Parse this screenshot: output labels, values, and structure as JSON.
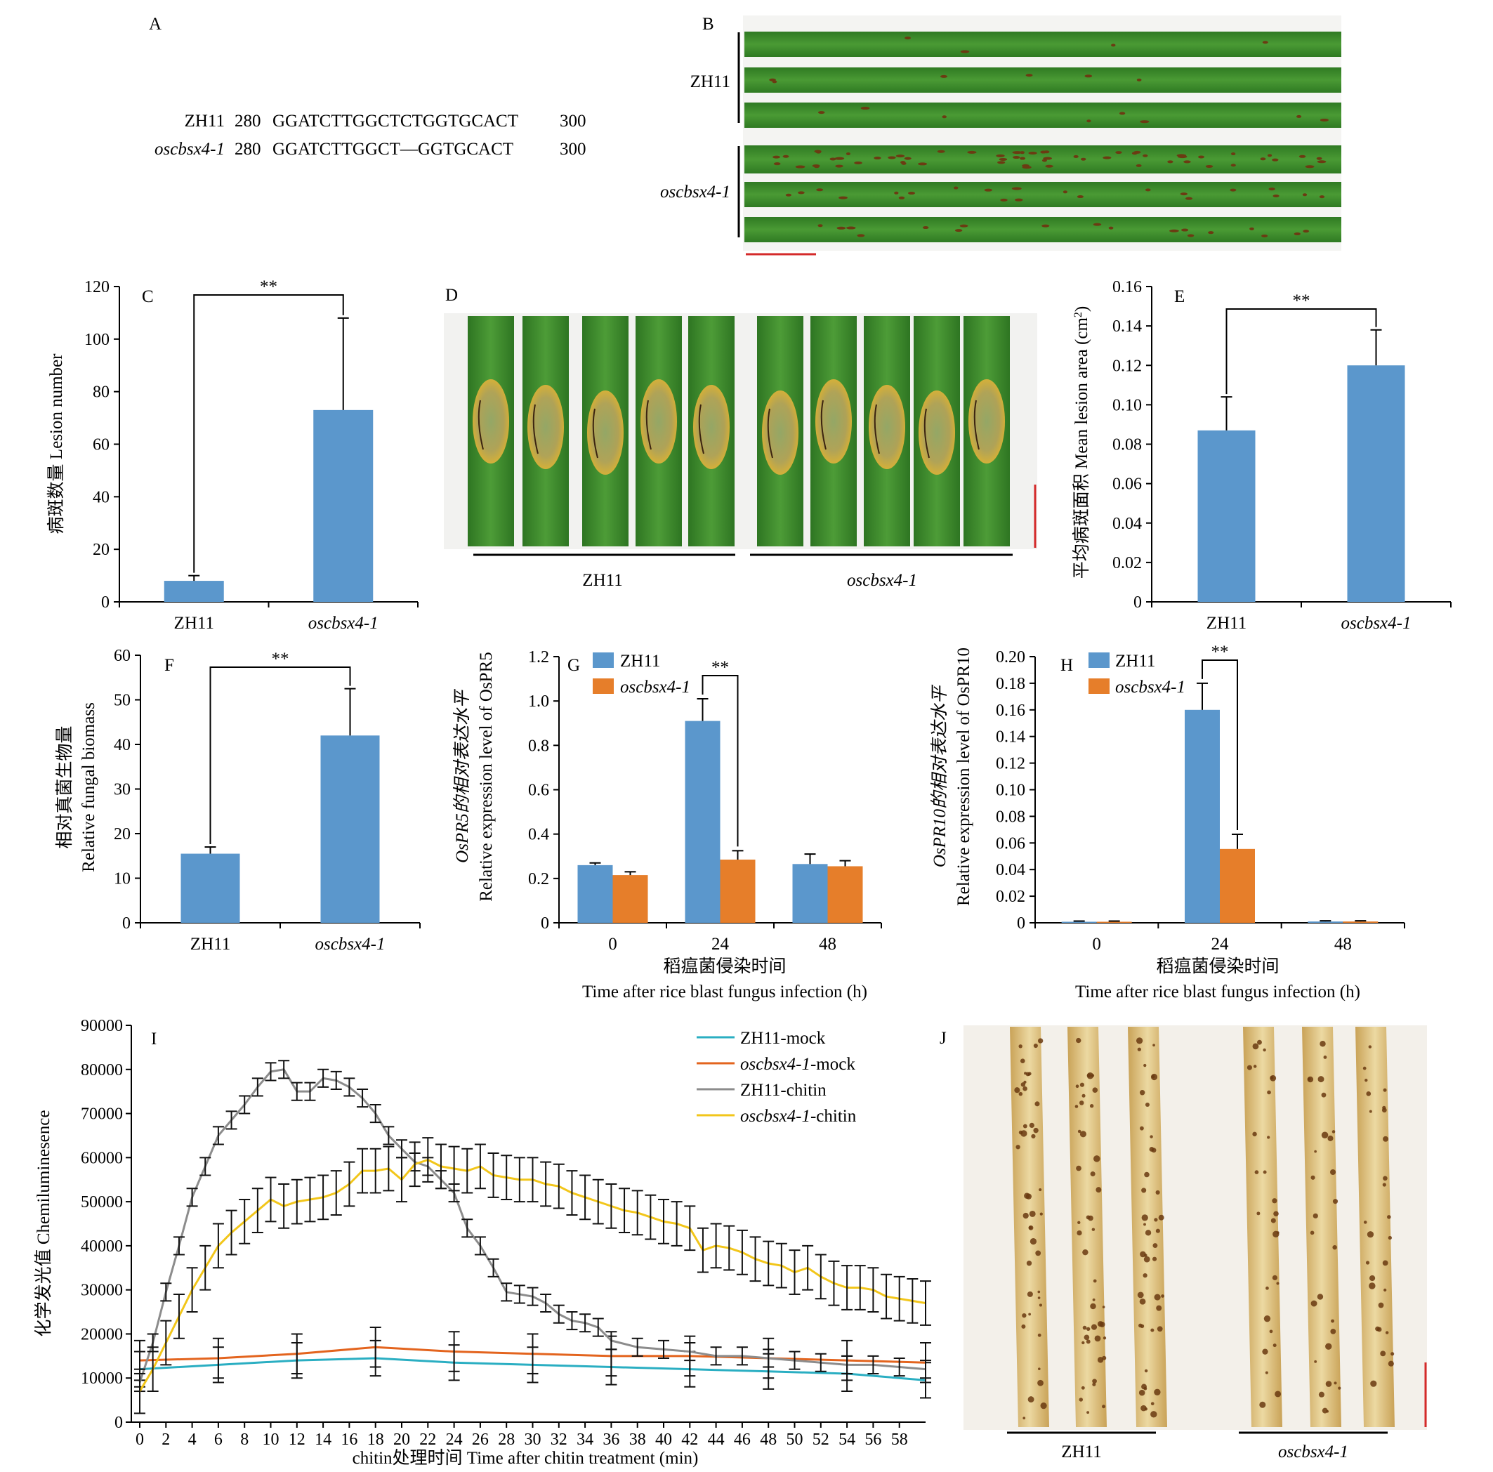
{
  "panels": {
    "A": {
      "letter": "A",
      "rows": [
        {
          "name": "ZH11",
          "start": "280",
          "seq": "GGATCTTGGCTCTGGTGCACT",
          "end": "300"
        },
        {
          "name": "oscbsx4-1",
          "start": "280",
          "seq": "GGATCTTGGCT—GGTGCACT",
          "end": "300"
        }
      ]
    },
    "B": {
      "letter": "B",
      "group1": "ZH11",
      "group2": "oscbsx4-1"
    },
    "D": {
      "letter": "D",
      "group1": "ZH11",
      "group2": "oscbsx4-1"
    },
    "J": {
      "letter": "J",
      "group1": "ZH11",
      "group2": "oscbsx4-1"
    }
  },
  "colors": {
    "blue": "#5b97cc",
    "orange": "#e67e2a",
    "cyan": "#2aaec2",
    "mockOrange": "#e3641e",
    "gray": "#8c8c8c",
    "yellow": "#f2c61a",
    "leafGreen": "#3f8a2e",
    "scaleRed": "#d42a2a"
  },
  "chart_data": [
    {
      "id": "C",
      "type": "bar",
      "letter": "C",
      "categories": [
        "ZH11",
        "oscbsx4-1"
      ],
      "values": [
        8,
        73
      ],
      "errors": [
        2,
        35
      ],
      "ylim": [
        0,
        120
      ],
      "yticks": [
        0,
        20,
        40,
        60,
        80,
        100,
        120
      ],
      "ylabel": "病斑数量 Lesion number",
      "significance": "**"
    },
    {
      "id": "E",
      "type": "bar",
      "letter": "E",
      "categories": [
        "ZH11",
        "oscbsx4-1"
      ],
      "values": [
        0.087,
        0.12
      ],
      "errors": [
        0.017,
        0.018
      ],
      "ylim": [
        0,
        0.16
      ],
      "yticks": [
        "0",
        "0.02",
        "0.04",
        "0.06",
        "0.08",
        "0.10",
        "0.12",
        "0.14",
        "0.16"
      ],
      "ylabel": "平均病斑面积 Mean lesion area (cm²)",
      "significance": "**"
    },
    {
      "id": "F",
      "type": "bar",
      "letter": "F",
      "categories": [
        "ZH11",
        "oscbsx4-1"
      ],
      "values": [
        15.5,
        42
      ],
      "errors": [
        1.5,
        10.5
      ],
      "ylim": [
        0,
        60
      ],
      "yticks": [
        0,
        10,
        20,
        30,
        40,
        50,
        60
      ],
      "ylabel1": "相对真菌生物量",
      "ylabel2": "Relative fungal biomass",
      "significance": "**"
    },
    {
      "id": "G",
      "type": "bar",
      "letter": "G",
      "categories": [
        "0",
        "24",
        "48"
      ],
      "series": [
        {
          "name": "ZH11",
          "values": [
            0.26,
            0.91,
            0.265
          ],
          "errors": [
            0.01,
            0.1,
            0.045
          ]
        },
        {
          "name": "oscbsx4-1",
          "values": [
            0.215,
            0.285,
            0.255
          ],
          "errors": [
            0.015,
            0.04,
            0.025
          ]
        }
      ],
      "ylim": [
        0,
        1.2
      ],
      "yticks": [
        "0",
        "0.2",
        "0.4",
        "0.6",
        "0.8",
        "1.0",
        "1.2"
      ],
      "ylabel1": "OsPR5的相对表达水平",
      "ylabel2": "Relative expression level of OsPR5",
      "xlabel1": "稻瘟菌侵染时间",
      "xlabel2": "Time after rice blast fungus infection (h)",
      "significance": "**"
    },
    {
      "id": "H",
      "type": "bar",
      "letter": "H",
      "categories": [
        "0",
        "24",
        "48"
      ],
      "series": [
        {
          "name": "ZH11",
          "values": [
            0.0008,
            0.16,
            0.001
          ],
          "errors": [
            0.0005,
            0.02,
            0.0005
          ]
        },
        {
          "name": "oscbsx4-1",
          "values": [
            0.0008,
            0.0555,
            0.001
          ],
          "errors": [
            0.0005,
            0.011,
            0.0005
          ]
        }
      ],
      "ylim": [
        0,
        0.2
      ],
      "yticks": [
        "0",
        "0.02",
        "0.04",
        "0.06",
        "0.08",
        "0.10",
        "0.12",
        "0.14",
        "0.16",
        "0.18",
        "0.20"
      ],
      "ylabel1": "OsPR10的相对表达水平",
      "ylabel2": "Relative expression level of OsPR10",
      "xlabel1": "稻瘟菌侵染时间",
      "xlabel2": "Time after rice blast fungus infection (h)",
      "significance": "**"
    },
    {
      "id": "I",
      "type": "line",
      "letter": "I",
      "xlim": [
        0,
        60
      ],
      "ylim": [
        0,
        90000
      ],
      "xticks": [
        0,
        2,
        4,
        6,
        8,
        10,
        12,
        14,
        16,
        18,
        20,
        22,
        24,
        26,
        28,
        30,
        32,
        34,
        36,
        38,
        40,
        42,
        44,
        46,
        48,
        50,
        52,
        54,
        56,
        58
      ],
      "yticks": [
        0,
        10000,
        20000,
        30000,
        40000,
        50000,
        60000,
        70000,
        80000,
        90000
      ],
      "ylabel": "化学发光值 Chemiluminesence",
      "xlabel": "chitin处理时间 Time after chitin treatment (min)",
      "series": [
        {
          "name": "ZH11-mock",
          "x": [
            0,
            6,
            12,
            18,
            24,
            30,
            36,
            42,
            48,
            54,
            60
          ],
          "y": [
            12000,
            13000,
            14000,
            14500,
            13500,
            13000,
            12500,
            12000,
            11500,
            11000,
            9500
          ],
          "err": 4000
        },
        {
          "name": "oscbsx4-1-mock",
          "x": [
            0,
            6,
            12,
            18,
            24,
            30,
            36,
            42,
            48,
            54,
            60
          ],
          "y": [
            14000,
            14500,
            15500,
            17000,
            16000,
            15500,
            15000,
            15000,
            14500,
            14000,
            13500
          ],
          "err": 4500
        },
        {
          "name": "ZH11-chitin",
          "x": [
            0,
            1,
            2,
            3,
            4,
            5,
            6,
            7,
            8,
            9,
            10,
            11,
            12,
            13,
            14,
            15,
            16,
            17,
            18,
            19,
            20,
            21,
            22,
            23,
            24,
            25,
            26,
            27,
            28,
            29,
            30,
            31,
            32,
            33,
            34,
            35,
            36,
            38,
            40,
            42,
            44,
            46,
            48,
            50,
            52,
            54,
            56,
            58,
            60
          ],
          "y": [
            9000,
            18000,
            29500,
            40000,
            51000,
            58000,
            65000,
            68500,
            72000,
            76000,
            79500,
            80000,
            75000,
            75000,
            78000,
            77500,
            76000,
            73500,
            70000,
            65000,
            62000,
            59000,
            58000,
            55000,
            52000,
            44000,
            40000,
            35000,
            29500,
            29000,
            28500,
            27000,
            24500,
            23000,
            22500,
            21500,
            18500,
            17000,
            16500,
            16000,
            15000,
            15000,
            14500,
            14000,
            13500,
            13000,
            13000,
            12500,
            12000
          ],
          "err": 2000
        },
        {
          "name": "oscbsx4-1-chitin",
          "x": [
            0,
            1,
            2,
            3,
            4,
            5,
            6,
            7,
            8,
            9,
            10,
            11,
            12,
            13,
            14,
            15,
            16,
            17,
            18,
            19,
            20,
            21,
            22,
            23,
            24,
            25,
            26,
            27,
            28,
            29,
            30,
            31,
            32,
            33,
            34,
            35,
            36,
            37,
            38,
            39,
            40,
            41,
            42,
            43,
            44,
            45,
            46,
            47,
            48,
            49,
            50,
            51,
            52,
            53,
            54,
            55,
            56,
            57,
            58,
            59,
            60
          ],
          "y": [
            7000,
            12000,
            18000,
            24000,
            30000,
            35000,
            40000,
            43000,
            45500,
            48000,
            50500,
            49000,
            50000,
            50500,
            51000,
            52000,
            54000,
            57000,
            57000,
            57500,
            55000,
            58500,
            59500,
            58000,
            57500,
            57000,
            58000,
            56000,
            55500,
            55000,
            55000,
            54000,
            53500,
            52000,
            51000,
            50000,
            49000,
            48000,
            47500,
            46500,
            45500,
            45000,
            44000,
            39000,
            40000,
            39500,
            38500,
            37000,
            36000,
            35500,
            34000,
            35000,
            33000,
            31500,
            30500,
            30500,
            30000,
            28500,
            28000,
            27500,
            27000
          ],
          "err": 5000
        }
      ]
    }
  ]
}
